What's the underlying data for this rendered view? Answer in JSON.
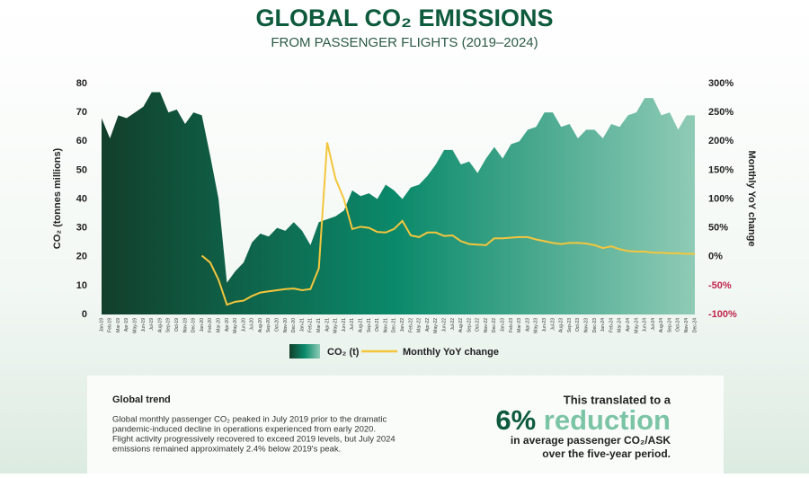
{
  "chart_data": {
    "type": "area",
    "title": "GLOBAL CO₂ EMISSIONS",
    "subtitle": "FROM PASSENGER FLIGHTS (2019–2024)",
    "y_label": "CO₂ (tonnes millions)",
    "y2_label": "Monthly YoY change",
    "categories": [
      "Jan-19",
      "Feb-19",
      "Mar-19",
      "Apr-19",
      "May-19",
      "Jun-19",
      "Jul-19",
      "Aug-19",
      "Sep-19",
      "Oct-19",
      "Nov-19",
      "Dec-19",
      "Jan-20",
      "Feb-20",
      "Mar-20",
      "Apr-20",
      "May-20",
      "Jun-20",
      "Jul-20",
      "Aug-20",
      "Sep-20",
      "Oct-20",
      "Nov-20",
      "Dec-20",
      "Jan-21",
      "Feb-21",
      "Mar-21",
      "Apr-21",
      "May-21",
      "Jun-21",
      "Jul-21",
      "Aug-21",
      "Sep-21",
      "Oct-21",
      "Nov-21",
      "Dec-21",
      "Jan-22",
      "Feb-22",
      "Mar-22",
      "Apr-22",
      "May-22",
      "Jun-22",
      "Jul-22",
      "Aug-22",
      "Sep-22",
      "Oct-22",
      "Nov-22",
      "Dec-22",
      "Jan-23",
      "Feb-23",
      "Mar-23",
      "Apr-23",
      "May-23",
      "Jun-23",
      "Jul-23",
      "Aug-23",
      "Sep-23",
      "Oct-23",
      "Nov-23",
      "Dec-23",
      "Jan-24",
      "Feb-24",
      "Mar-24",
      "Apr-24",
      "May-24",
      "Jun-24",
      "Jul-24",
      "Aug-24",
      "Sep-24",
      "Oct-24",
      "Nov-24",
      "Dec-24"
    ],
    "series": [
      {
        "name": "CO₂ (t)",
        "type": "area",
        "gradient": [
          "#123f2b",
          "#0b8a6b",
          "#8fcbb6"
        ],
        "values": [
          68,
          61,
          69,
          68,
          70,
          72,
          77,
          77,
          70,
          71,
          66,
          70,
          69,
          55,
          40,
          11,
          15,
          18,
          25,
          28,
          27,
          30,
          29,
          32,
          29,
          24,
          32,
          33,
          34,
          36,
          43,
          41,
          42,
          40,
          45,
          43,
          40,
          44,
          45,
          48,
          52,
          57,
          57,
          52,
          53,
          49,
          54,
          58,
          54,
          59,
          60,
          64,
          65,
          70,
          70,
          65,
          66,
          61,
          64,
          64,
          61,
          66,
          65,
          69,
          70,
          75,
          75,
          69,
          70,
          64,
          69,
          69
        ]
      },
      {
        "name": "Monthly YoY change",
        "type": "line",
        "axis": "y2",
        "color": "#f4c63d",
        "values": [
          null,
          null,
          null,
          null,
          null,
          null,
          null,
          null,
          null,
          null,
          null,
          null,
          2,
          -10,
          -40,
          -83,
          -78,
          -76,
          -68,
          -62,
          -60,
          -58,
          -56,
          -55,
          -58,
          -56,
          -20,
          198,
          135,
          100,
          48,
          52,
          50,
          43,
          42,
          48,
          62,
          37,
          34,
          42,
          42,
          36,
          37,
          27,
          22,
          21,
          20,
          32,
          32,
          33,
          34,
          34,
          30,
          27,
          24,
          22,
          24,
          24,
          23,
          20,
          15,
          18,
          13,
          10,
          9,
          9,
          7,
          7,
          6,
          6,
          5,
          5
        ]
      }
    ],
    "ylim": [
      0,
      80
    ],
    "yticks": [
      0,
      10,
      20,
      30,
      40,
      50,
      60,
      70,
      80
    ],
    "y2lim": [
      -100,
      300
    ],
    "y2ticks": [
      {
        "value": -100,
        "label": "-100%"
      },
      {
        "value": -50,
        "label": "-50%"
      },
      {
        "value": 0,
        "label": "0%"
      },
      {
        "value": 50,
        "label": "50%"
      },
      {
        "value": 100,
        "label": "100%"
      },
      {
        "value": 150,
        "label": "150%"
      },
      {
        "value": 200,
        "label": "200%"
      },
      {
        "value": 250,
        "label": "250%"
      },
      {
        "value": 300,
        "label": "300%"
      }
    ],
    "legend": "bottom"
  },
  "panel": {
    "heading": "Global trend",
    "body": [
      "Global monthly passenger CO₂ peaked in July 2019 prior to the dramatic",
      "pandemic-induced decline in operations experienced from early 2020.",
      "Flight activity progressively recovered to exceed 2019 levels, but July 2024",
      "emissions remained approximately 2.4% below 2019's peak."
    ],
    "lead": "This translated to a",
    "highlight_num": "6%",
    "highlight_word": "reduction",
    "tail": [
      "in average passenger CO₂/ASK",
      "over the five-year period."
    ]
  }
}
